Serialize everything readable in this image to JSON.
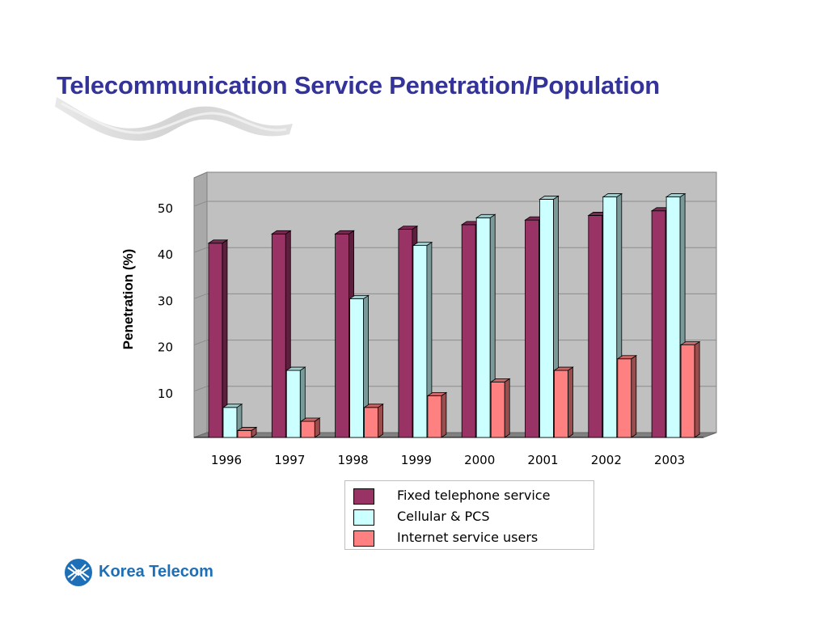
{
  "slide": {
    "title": "Telecommunication Service Penetration/Population"
  },
  "colors": {
    "title": "#33339a",
    "fixed": "#993366",
    "cellular": "#ccffff",
    "internet": "#ff8080",
    "logo": "#1d6fb8"
  },
  "footer": {
    "company": "Korea Telecom",
    "logo_icon": "globe-lattice-icon"
  },
  "chart_data": {
    "type": "bar",
    "style": "3d-clustered-column",
    "categories": [
      "1996",
      "1997",
      "1998",
      "1999",
      "2000",
      "2001",
      "2002",
      "2003"
    ],
    "series": [
      {
        "name": "Fixed telephone service",
        "color": "#993366",
        "values": [
          42,
          44,
          44,
          45,
          46,
          47,
          48,
          49
        ]
      },
      {
        "name": "Cellular & PCS",
        "color": "#ccffff",
        "values": [
          6.5,
          14.5,
          30,
          41.5,
          47.5,
          51.5,
          52,
          52
        ]
      },
      {
        "name": "Internet service users",
        "color": "#ff8080",
        "values": [
          1.5,
          3.5,
          6.5,
          9,
          12,
          14.5,
          17,
          20
        ]
      }
    ],
    "ylabel": "Penetration (%)",
    "yticks": [
      "10",
      "20",
      "30",
      "40",
      "50"
    ],
    "ylim": [
      0,
      55
    ],
    "grid": true,
    "legend": "bottom-right"
  }
}
